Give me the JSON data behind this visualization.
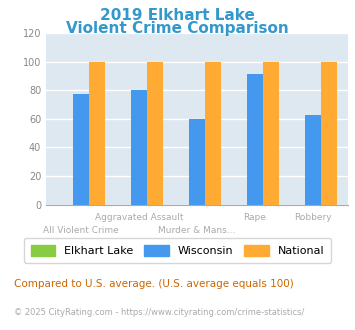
{
  "title_line1": "2019 Elkhart Lake",
  "title_line2": "Violent Crime Comparison",
  "title_color": "#3399cc",
  "categories": [
    "All Violent Crime",
    "Aggravated Assault",
    "Murder & Mans...",
    "Rape",
    "Robbery"
  ],
  "elkhart_lake": [
    0,
    0,
    0,
    0,
    0
  ],
  "wisconsin": [
    77,
    80,
    60,
    91,
    63
  ],
  "national": [
    100,
    100,
    100,
    100,
    100
  ],
  "colors": {
    "elkhart_lake": "#88cc44",
    "wisconsin": "#4499ee",
    "national": "#ffaa33"
  },
  "ylim": [
    0,
    120
  ],
  "yticks": [
    0,
    20,
    40,
    60,
    80,
    100,
    120
  ],
  "legend_labels": [
    "Elkhart Lake",
    "Wisconsin",
    "National"
  ],
  "footnote1": "Compared to U.S. average. (U.S. average equals 100)",
  "footnote2": "© 2025 CityRating.com - https://www.cityrating.com/crime-statistics/",
  "footnote1_color": "#cc6600",
  "footnote2_color": "#aaaaaa",
  "plot_bg": "#dde8f0"
}
